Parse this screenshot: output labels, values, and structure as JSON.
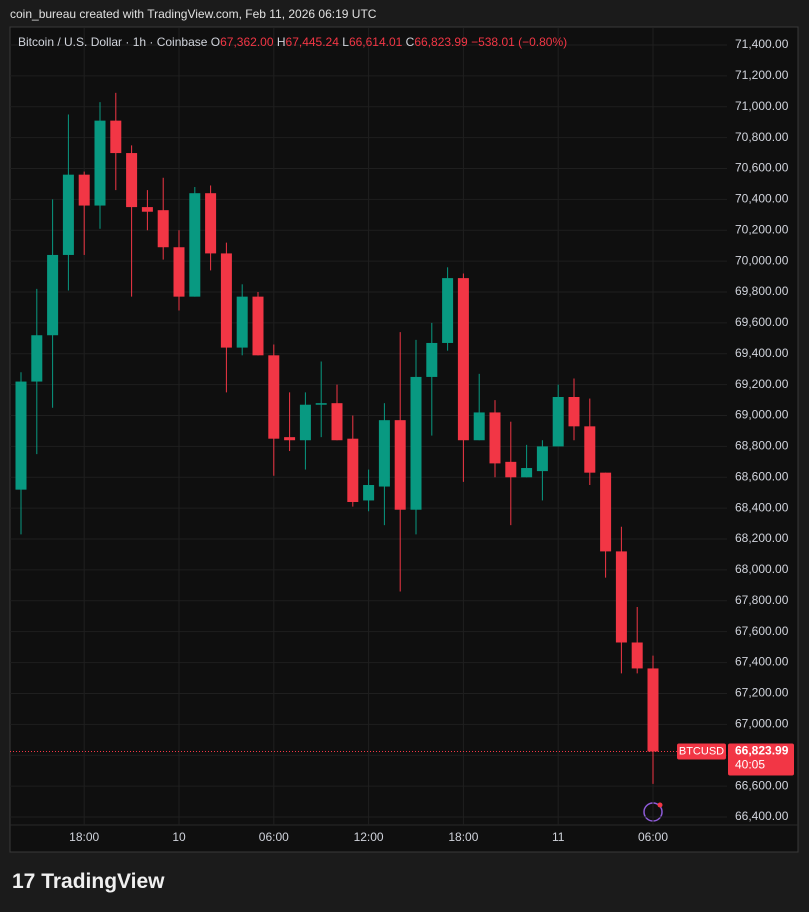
{
  "top_text": "coin_bureau created with TradingView.com, Feb 11, 2026 06:19 UTC",
  "header": {
    "symbol": "Bitcoin / U.S. Dollar · 1h · Coinbase",
    "ohlc": [
      [
        "O",
        "67,362.00"
      ],
      [
        "H",
        "67,445.24"
      ],
      [
        "L",
        "66,614.01"
      ],
      [
        "C",
        "66,823.99"
      ]
    ],
    "change": "−538.01 (−0.80%)"
  },
  "brand": "TradingView",
  "chart_data": {
    "type": "candlestick",
    "categories": [
      null,
      null,
      null,
      null,
      "18:00",
      null,
      null,
      null,
      null,
      null,
      "10",
      null,
      null,
      null,
      null,
      null,
      "06:00",
      null,
      null,
      null,
      null,
      null,
      "12:00",
      null,
      null,
      null,
      null,
      null,
      "18:00",
      null,
      null,
      null,
      null,
      null,
      "11",
      null,
      null,
      null,
      null,
      null,
      "06:00"
    ],
    "open": [
      68520,
      69220,
      69520,
      70040,
      70560,
      70360,
      70910,
      70700,
      70350,
      70330,
      70090,
      69770,
      70440,
      70050,
      69440,
      69770,
      69390,
      68860,
      68840,
      69070,
      69080,
      68850,
      68450,
      68540,
      68970,
      68390,
      69250,
      69470,
      69890,
      68840,
      69020,
      68700,
      68600,
      68640,
      68800,
      69120,
      68930,
      68630,
      68120,
      67530,
      67362
    ],
    "high": [
      69280,
      69820,
      70400,
      70950,
      70580,
      71030,
      71090,
      70750,
      70460,
      70540,
      70200,
      70480,
      70490,
      70120,
      69850,
      69800,
      69460,
      69150,
      69150,
      69350,
      69200,
      69000,
      68650,
      69080,
      69540,
      69490,
      69600,
      69960,
      69920,
      69270,
      69100,
      68960,
      68810,
      68840,
      69200,
      69240,
      69110,
      68630,
      68280,
      67760,
      67445.24
    ],
    "low": [
      68230,
      68750,
      69050,
      69810,
      70040,
      70210,
      70460,
      69770,
      70200,
      70010,
      69680,
      69770,
      69940,
      69150,
      69390,
      69390,
      68610,
      68770,
      68650,
      68860,
      68840,
      68410,
      68380,
      68290,
      67860,
      68230,
      68870,
      69420,
      68570,
      68840,
      68600,
      68290,
      68600,
      68450,
      68800,
      68840,
      68550,
      67950,
      67330,
      67330,
      66614.01
    ],
    "close": [
      69220,
      69520,
      70040,
      70560,
      70360,
      70910,
      70700,
      70350,
      70320,
      70090,
      69770,
      70440,
      70050,
      69440,
      69770,
      69390,
      68850,
      68840,
      69070,
      69080,
      68840,
      68440,
      68550,
      68970,
      68390,
      69250,
      69470,
      69890,
      68840,
      69020,
      68690,
      68600,
      68660,
      68800,
      69120,
      68930,
      68630,
      68120,
      67530,
      67362,
      66823.99
    ],
    "up_color": "#089981",
    "down_color": "#f23645",
    "ylim": [
      66186,
      71497
    ],
    "yticks": [
      {
        "value": 66400,
        "label": "66,400.00"
      },
      {
        "value": 66600,
        "label": "66,600.00"
      },
      {
        "value": 66800,
        "label": "66,800.00"
      },
      {
        "value": 67000,
        "label": "67,000.00"
      },
      {
        "value": 67200,
        "label": "67,200.00"
      },
      {
        "value": 67400,
        "label": "67,400.00"
      },
      {
        "value": 67600,
        "label": "67,600.00"
      },
      {
        "value": 67800,
        "label": "67,800.00"
      },
      {
        "value": 68000,
        "label": "68,000.00"
      },
      {
        "value": 68200,
        "label": "68,200.00"
      },
      {
        "value": 68400,
        "label": "68,400.00"
      },
      {
        "value": 68600,
        "label": "68,600.00"
      },
      {
        "value": 68800,
        "label": "68,800.00"
      },
      {
        "value": 69000,
        "label": "69,000.00"
      },
      {
        "value": 69200,
        "label": "69,200.00"
      },
      {
        "value": 69400,
        "label": "69,400.00"
      },
      {
        "value": 69600,
        "label": "69,600.00"
      },
      {
        "value": 69800,
        "label": "69,800.00"
      },
      {
        "value": 70000,
        "label": "70,000.00"
      },
      {
        "value": 70200,
        "label": "70,200.00"
      },
      {
        "value": 70400,
        "label": "70,400.00"
      },
      {
        "value": 70600,
        "label": "70,600.00"
      },
      {
        "value": 70800,
        "label": "70,800.00"
      },
      {
        "value": 71000,
        "label": "71,000.00"
      },
      {
        "value": 71200,
        "label": "71,200.00"
      },
      {
        "value": 71400,
        "label": "71,400.00"
      }
    ],
    "grid": true,
    "last_price": {
      "symbol": "BTCUSD",
      "value": 66823.99,
      "label": "66,823.99",
      "countdown": "40:05"
    }
  }
}
